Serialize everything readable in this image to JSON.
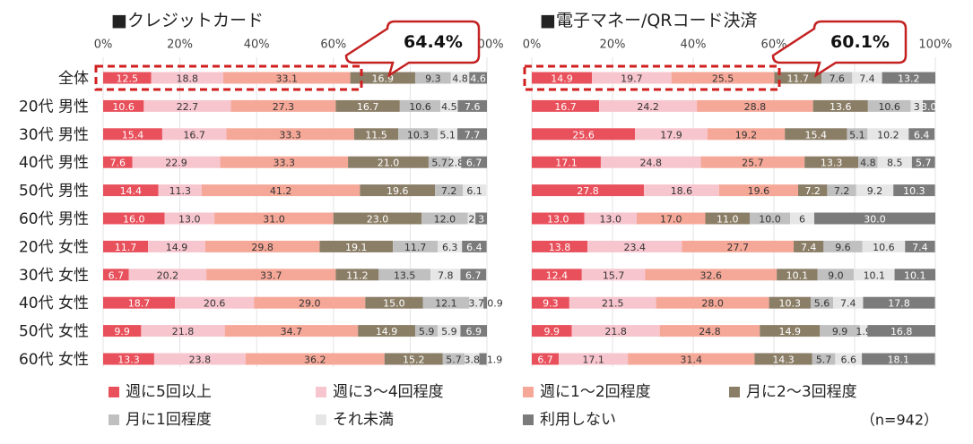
{
  "n_label": "（n=942）",
  "legend": [
    {
      "label": "週に5回以上",
      "color": "#e8505b"
    },
    {
      "label": "週に3〜4回程度",
      "color": "#f7c5ce"
    },
    {
      "label": "週に1〜2回程度",
      "color": "#f6a898"
    },
    {
      "label": "月に2〜3回程度",
      "color": "#8b7e67"
    },
    {
      "label": "月に1回程度",
      "color": "#c0c0c0"
    },
    {
      "label": "それ未満",
      "color": "#e6e6e6"
    },
    {
      "label": "利用しない",
      "color": "#7b7b7b"
    }
  ],
  "chart_data": [
    {
      "type": "bar",
      "orientation": "horizontal-stacked-100",
      "title": "■クレジットカード",
      "callout": "64.4%",
      "xlim": [
        0,
        100
      ],
      "xticks": [
        "0%",
        "20%",
        "40%",
        "60%",
        "80%",
        "100%"
      ],
      "categories": [
        "全体",
        "20代 男性",
        "30代 男性",
        "40代 男性",
        "50代 男性",
        "60代 男性",
        "20代 女性",
        "30代 女性",
        "40代 女性",
        "50代 女性",
        "60代 女性"
      ],
      "series": [
        {
          "name": "週に5回以上",
          "values": [
            12.5,
            10.6,
            15.4,
            7.6,
            14.4,
            16.0,
            11.7,
            6.7,
            18.7,
            9.9,
            13.3
          ],
          "labels": [
            "12.5",
            "10.6",
            "15.4",
            "7.6",
            "14.4",
            "16.0",
            "11.7",
            "6.7",
            "18.7",
            "9.9",
            "13.3"
          ]
        },
        {
          "name": "週に3〜4回程度",
          "values": [
            18.8,
            22.7,
            16.7,
            22.9,
            11.3,
            13.0,
            14.9,
            20.2,
            20.6,
            21.8,
            23.8
          ],
          "labels": [
            "18.8",
            "22.7",
            "16.7",
            "22.9",
            "11.3",
            "13.0",
            "14.9",
            "20.2",
            "20.6",
            "21.8",
            "23.8"
          ]
        },
        {
          "name": "週に1〜2回程度",
          "values": [
            33.1,
            27.3,
            33.3,
            33.3,
            41.2,
            31.0,
            29.8,
            33.7,
            29.0,
            34.7,
            36.2
          ],
          "labels": [
            "33.1",
            "27.3",
            "33.3",
            "33.3",
            "41.2",
            "31.0",
            "29.8",
            "33.7",
            "29.0",
            "34.7",
            "36.2"
          ]
        },
        {
          "name": "月に2〜3回程度",
          "values": [
            16.9,
            16.7,
            11.5,
            21.0,
            19.6,
            23.0,
            19.1,
            11.2,
            15.0,
            14.9,
            15.2
          ],
          "labels": [
            "16.9",
            "16.7",
            "11.5",
            "21.0",
            "19.6",
            "23.0",
            "19.1",
            "11.2",
            "15.0",
            "14.9",
            "15.2"
          ]
        },
        {
          "name": "月に1回程度",
          "values": [
            9.3,
            10.6,
            10.3,
            5.7,
            7.2,
            12.0,
            11.7,
            13.5,
            12.1,
            5.9,
            5.7
          ],
          "labels": [
            "9.3",
            "10.6",
            "10.3",
            "5.7",
            "7.2",
            "12.0",
            "11.7",
            "13.5",
            "12.1",
            "5.9",
            "5.7"
          ]
        },
        {
          "name": "それ未満",
          "values": [
            4.8,
            4.5,
            5.1,
            2.8,
            6.1,
            2.0,
            6.3,
            7.8,
            3.7,
            5.9,
            3.8
          ],
          "labels": [
            "4.8",
            "4.5",
            "5.1",
            "2.8",
            "6.1",
            "2",
            "6.3",
            "7.8",
            "3.7",
            "5.9",
            "3.8"
          ]
        },
        {
          "name": "利用しない",
          "values": [
            4.6,
            7.6,
            7.7,
            6.7,
            0.0,
            3.0,
            6.4,
            6.7,
            0.9,
            6.9,
            1.9
          ],
          "labels": [
            "4.6",
            "7.6",
            "7.7",
            "6.7",
            "",
            "3",
            "6.4",
            "6.7",
            "0.9",
            "6.9",
            "1.9"
          ]
        }
      ]
    },
    {
      "type": "bar",
      "orientation": "horizontal-stacked-100",
      "title": "■電子マネー/QRコード決済",
      "callout": "60.1%",
      "xlim": [
        0,
        100
      ],
      "xticks": [
        "0%",
        "20%",
        "40%",
        "60%",
        "80%",
        "100%"
      ],
      "categories": [
        "全体",
        "20代 男性",
        "30代 男性",
        "40代 男性",
        "50代 男性",
        "60代 男性",
        "20代 女性",
        "30代 女性",
        "40代 女性",
        "50代 女性",
        "60代 女性"
      ],
      "series": [
        {
          "name": "週に5回以上",
          "values": [
            14.9,
            16.7,
            25.6,
            17.1,
            27.8,
            13.0,
            13.8,
            12.4,
            9.3,
            9.9,
            6.7
          ],
          "labels": [
            "14.9",
            "16.7",
            "25.6",
            "17.1",
            "27.8",
            "13.0",
            "13.8",
            "12.4",
            "9.3",
            "9.9",
            "6.7"
          ]
        },
        {
          "name": "週に3〜4回程度",
          "values": [
            19.7,
            24.2,
            17.9,
            24.8,
            18.6,
            13.0,
            23.4,
            15.7,
            21.5,
            21.8,
            17.1
          ],
          "labels": [
            "19.7",
            "24.2",
            "17.9",
            "24.8",
            "18.6",
            "13.0",
            "23.4",
            "15.7",
            "21.5",
            "21.8",
            "17.1"
          ]
        },
        {
          "name": "週に1〜2回程度",
          "values": [
            25.5,
            28.8,
            19.2,
            25.7,
            19.6,
            17.0,
            27.7,
            32.6,
            28.0,
            24.8,
            31.4
          ],
          "labels": [
            "25.5",
            "28.8",
            "19.2",
            "25.7",
            "19.6",
            "17.0",
            "27.7",
            "32.6",
            "28.0",
            "24.8",
            "31.4"
          ]
        },
        {
          "name": "月に2〜3回程度",
          "values": [
            11.7,
            13.6,
            15.4,
            13.3,
            7.2,
            11.0,
            7.4,
            10.1,
            10.3,
            14.9,
            14.3
          ],
          "labels": [
            "11.7",
            "13.6",
            "15.4",
            "13.3",
            "7.2",
            "11.0",
            "7.4",
            "10.1",
            "10.3",
            "14.9",
            "14.3"
          ]
        },
        {
          "name": "月に1回程度",
          "values": [
            7.6,
            10.6,
            5.1,
            4.8,
            7.2,
            10.0,
            9.6,
            9.0,
            5.6,
            9.9,
            5.7
          ],
          "labels": [
            "7.6",
            "10.6",
            "5.1",
            "4.8",
            "7.2",
            "10.0",
            "9.6",
            "9.0",
            "5.6",
            "9.9",
            "5.7"
          ]
        },
        {
          "name": "それ未満",
          "values": [
            7.4,
            3.0,
            10.2,
            8.5,
            9.2,
            6.0,
            10.6,
            10.1,
            7.4,
            1.9,
            6.6
          ],
          "labels": [
            "7.4",
            "3",
            "10.2",
            "8.5",
            "9.2",
            "6",
            "10.6",
            "10.1",
            "7.4",
            "1.9",
            "6.6"
          ]
        },
        {
          "name": "利用しない",
          "values": [
            13.2,
            3.0,
            6.4,
            5.7,
            10.3,
            30.0,
            7.4,
            10.1,
            17.8,
            16.8,
            18.1
          ],
          "labels": [
            "13.2",
            "3.0",
            "6.4",
            "5.7",
            "10.3",
            "30.0",
            "7.4",
            "10.1",
            "17.8",
            "16.8",
            "18.1"
          ]
        }
      ]
    }
  ]
}
